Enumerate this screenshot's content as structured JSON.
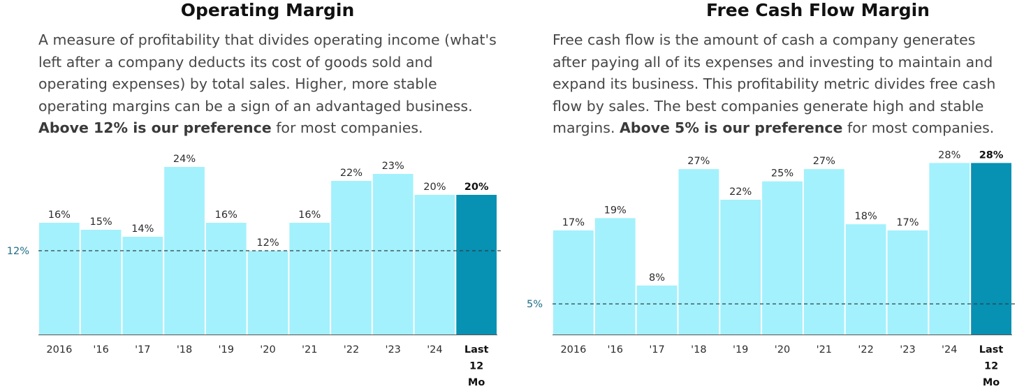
{
  "chart_data": [
    {
      "type": "bar",
      "title": "Operating Margin",
      "description": "A measure of profitability that divides operating income (what's left after a company deducts its cost of goods sold and operating expenses) by total sales. Higher, more stable operating margins can be a sign of an advantaged business.",
      "preference_bold": "Above 12% is our preference",
      "preference_rest": " for most companies.",
      "categories": [
        "2016",
        "'16",
        "'17",
        "'18",
        "'19",
        "'20",
        "'21",
        "'22",
        "'23",
        "'24",
        "Last 12 Mo"
      ],
      "values": [
        16,
        15,
        14,
        24,
        16,
        12,
        16,
        22,
        23,
        20,
        20
      ],
      "value_labels": [
        "16%",
        "15%",
        "14%",
        "24%",
        "16%",
        "12%",
        "16%",
        "22%",
        "23%",
        "20%",
        "20%"
      ],
      "reference": {
        "value": 12,
        "label": "12%"
      },
      "ylim": [
        0,
        25
      ],
      "colors": {
        "bar": "#a3f1fc",
        "highlight": "#0791b2",
        "reference": "#2f3f46"
      },
      "grid": false,
      "legend": "none"
    },
    {
      "type": "bar",
      "title": "Free Cash Flow Margin",
      "description": "Free cash flow is the amount of cash a company generates after paying all of its expenses and investing to maintain and expand its business. This profitability metric divides free cash flow by sales. The best companies generate high and stable margins.",
      "preference_bold": "Above 5% is our preference",
      "preference_rest": " for most companies.",
      "categories": [
        "2016",
        "'16",
        "'17",
        "'18",
        "'19",
        "'20",
        "'21",
        "'22",
        "'23",
        "'24",
        "Last 12 Mo"
      ],
      "values": [
        17,
        19,
        8,
        27,
        22,
        25,
        27,
        18,
        17,
        28,
        28
      ],
      "value_labels": [
        "17%",
        "19%",
        "8%",
        "27%",
        "22%",
        "25%",
        "27%",
        "18%",
        "17%",
        "28%",
        "28%"
      ],
      "reference": {
        "value": 5,
        "label": "5%"
      },
      "ylim": [
        0,
        28.5
      ],
      "colors": {
        "bar": "#a3f1fc",
        "highlight": "#0791b2",
        "reference": "#2f3f46"
      },
      "grid": false,
      "legend": "none"
    }
  ]
}
